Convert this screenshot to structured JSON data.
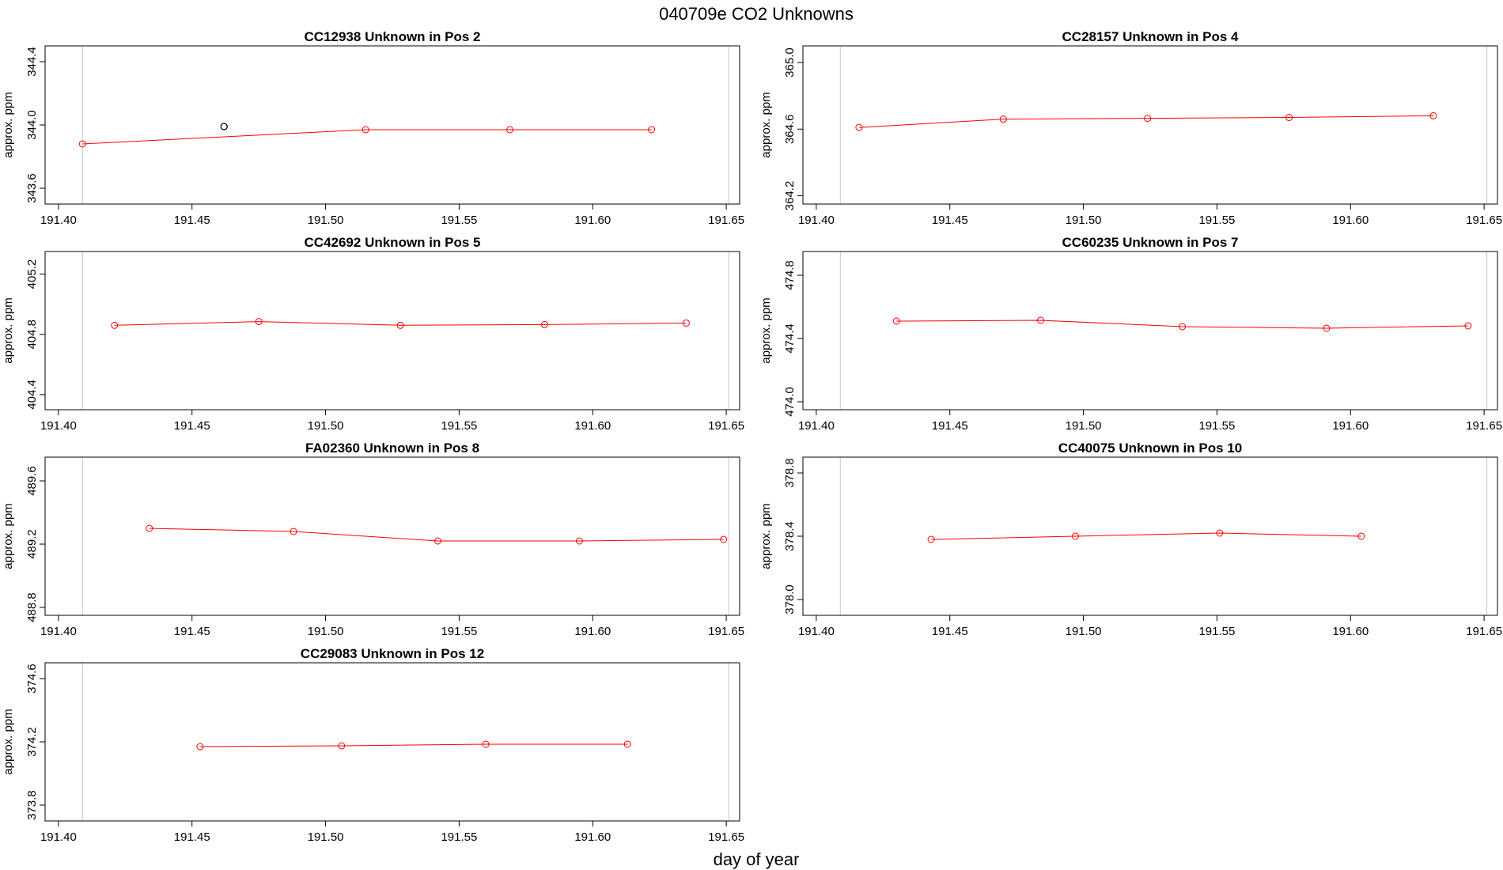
{
  "page": {
    "title": "040709e  CO2 Unknowns",
    "xlabel": "day of year"
  },
  "style": {
    "series_color": "#ff0000",
    "flagged_point_color": "#000000",
    "frame_color": "#000000",
    "vline_color": "#c8c8c8"
  },
  "chart_data": [
    {
      "type": "line",
      "title": "CC12938    Unknown in Pos 2",
      "ylabel": "approx. ppm",
      "xlim": [
        191.395,
        191.655
      ],
      "ylim": [
        343.5,
        344.5
      ],
      "xticks": [
        191.4,
        191.45,
        191.5,
        191.55,
        191.6,
        191.65
      ],
      "xtick_labels": [
        "191.40",
        "191.45",
        "191.50",
        "191.55",
        "191.60",
        "191.65"
      ],
      "yticks": [
        343.6,
        344.0,
        344.4
      ],
      "ytick_labels": [
        "343.6",
        "344.0",
        "344.4"
      ],
      "vlines": [
        191.409,
        191.651
      ],
      "x": [
        191.409,
        191.515,
        191.569,
        191.622
      ],
      "y": [
        343.88,
        343.97,
        343.97,
        343.97
      ],
      "flagged": [
        {
          "x": 191.462,
          "y": 343.99
        }
      ]
    },
    {
      "type": "line",
      "title": "CC28157    Unknown in Pos 4",
      "ylabel": "approx. ppm",
      "xlim": [
        191.395,
        191.655
      ],
      "ylim": [
        364.15,
        365.1
      ],
      "xticks": [
        191.4,
        191.45,
        191.5,
        191.55,
        191.6,
        191.65
      ],
      "xtick_labels": [
        "191.40",
        "191.45",
        "191.50",
        "191.55",
        "191.60",
        "191.65"
      ],
      "yticks": [
        364.2,
        364.6,
        365.0
      ],
      "ytick_labels": [
        "364.2",
        "364.6",
        "365.0"
      ],
      "vlines": [
        191.409,
        191.651
      ],
      "x": [
        191.416,
        191.47,
        191.524,
        191.577,
        191.631
      ],
      "y": [
        364.61,
        364.66,
        364.665,
        364.67,
        364.68
      ],
      "flagged": []
    },
    {
      "type": "line",
      "title": "CC42692    Unknown in Pos 5",
      "ylabel": "approx. ppm",
      "xlim": [
        191.395,
        191.655
      ],
      "ylim": [
        404.3,
        405.35
      ],
      "xticks": [
        191.4,
        191.45,
        191.5,
        191.55,
        191.6,
        191.65
      ],
      "xtick_labels": [
        "191.40",
        "191.45",
        "191.50",
        "191.55",
        "191.60",
        "191.65"
      ],
      "yticks": [
        404.4,
        404.8,
        405.2
      ],
      "ytick_labels": [
        "404.4",
        "404.8",
        "405.2"
      ],
      "vlines": [
        191.409,
        191.651
      ],
      "x": [
        191.421,
        191.475,
        191.528,
        191.582,
        191.635
      ],
      "y": [
        404.86,
        404.885,
        404.86,
        404.865,
        404.875
      ],
      "flagged": []
    },
    {
      "type": "line",
      "title": "CC60235    Unknown in Pos 7",
      "ylabel": "approx. ppm",
      "xlim": [
        191.395,
        191.655
      ],
      "ylim": [
        473.95,
        474.95
      ],
      "xticks": [
        191.4,
        191.45,
        191.5,
        191.55,
        191.6,
        191.65
      ],
      "xtick_labels": [
        "191.40",
        "191.45",
        "191.50",
        "191.55",
        "191.60",
        "191.65"
      ],
      "yticks": [
        474.0,
        474.4,
        474.8
      ],
      "ytick_labels": [
        "474.0",
        "474.4",
        "474.8"
      ],
      "vlines": [
        191.409,
        191.651
      ],
      "x": [
        191.43,
        191.484,
        191.537,
        191.591,
        191.644
      ],
      "y": [
        474.51,
        474.515,
        474.475,
        474.465,
        474.48
      ],
      "flagged": []
    },
    {
      "type": "line",
      "title": "FA02360    Unknown in Pos 8",
      "ylabel": "approx. ppm",
      "xlim": [
        191.395,
        191.655
      ],
      "ylim": [
        488.75,
        489.75
      ],
      "xticks": [
        191.4,
        191.45,
        191.5,
        191.55,
        191.6,
        191.65
      ],
      "xtick_labels": [
        "191.40",
        "191.45",
        "191.50",
        "191.55",
        "191.60",
        "191.65"
      ],
      "yticks": [
        488.8,
        489.2,
        489.6
      ],
      "ytick_labels": [
        "488.8",
        "489.2",
        "489.6"
      ],
      "vlines": [
        191.409,
        191.651
      ],
      "x": [
        191.434,
        191.488,
        191.542,
        191.595,
        191.649
      ],
      "y": [
        489.3,
        489.28,
        489.22,
        489.22,
        489.23
      ],
      "flagged": []
    },
    {
      "type": "line",
      "title": "CC40075    Unknown in Pos 10",
      "ylabel": "approx. ppm",
      "xlim": [
        191.395,
        191.655
      ],
      "ylim": [
        377.9,
        378.9
      ],
      "xticks": [
        191.4,
        191.45,
        191.5,
        191.55,
        191.6,
        191.65
      ],
      "xtick_labels": [
        "191.40",
        "191.45",
        "191.50",
        "191.55",
        "191.60",
        "191.65"
      ],
      "yticks": [
        378.0,
        378.4,
        378.8
      ],
      "ytick_labels": [
        "378.0",
        "378.4",
        "378.8"
      ],
      "vlines": [
        191.409,
        191.651
      ],
      "x": [
        191.443,
        191.497,
        191.551,
        191.604
      ],
      "y": [
        378.38,
        378.4,
        378.42,
        378.4
      ],
      "flagged": []
    },
    {
      "type": "line",
      "title": "CC29083    Unknown in Pos 12",
      "ylabel": "approx. ppm",
      "xlim": [
        191.395,
        191.655
      ],
      "ylim": [
        373.7,
        374.7
      ],
      "xticks": [
        191.4,
        191.45,
        191.5,
        191.55,
        191.6,
        191.65
      ],
      "xtick_labels": [
        "191.40",
        "191.45",
        "191.50",
        "191.55",
        "191.60",
        "191.65"
      ],
      "yticks": [
        373.8,
        374.2,
        374.6
      ],
      "ytick_labels": [
        "373.8",
        "374.2",
        "374.6"
      ],
      "vlines": [
        191.409,
        191.651
      ],
      "x": [
        191.453,
        191.506,
        191.56,
        191.613
      ],
      "y": [
        374.17,
        374.175,
        374.185,
        374.185
      ],
      "flagged": []
    }
  ]
}
